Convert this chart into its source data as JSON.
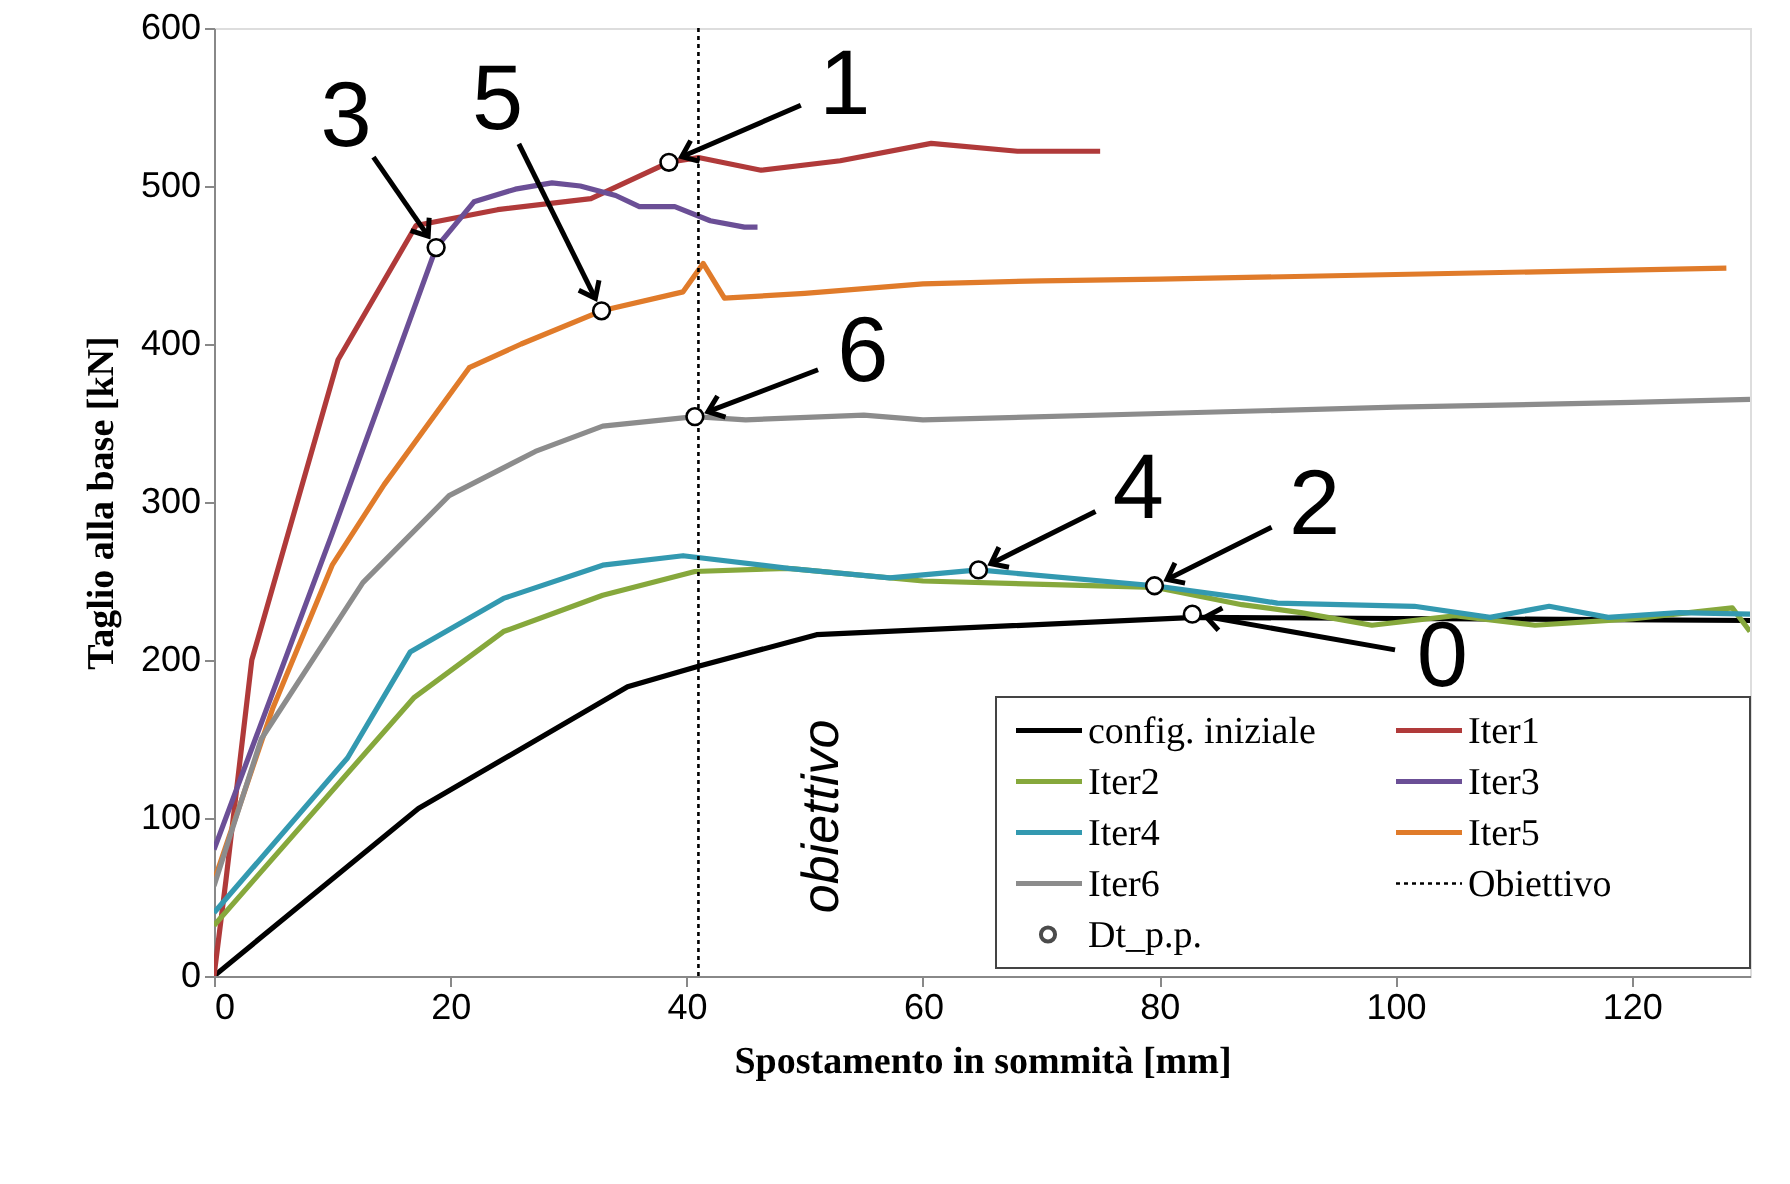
{
  "chart_data": {
    "type": "line",
    "xlabel": "Spostamento in sommità [mm]",
    "ylabel": "Taglio alla base [kN]",
    "xlim": [
      0,
      130
    ],
    "xticks": [
      0,
      20,
      40,
      60,
      80,
      100,
      120
    ],
    "ylim": [
      0,
      600
    ],
    "yticks": [
      0,
      100,
      200,
      300,
      400,
      500,
      600
    ],
    "grid": false,
    "legend": "bottom right",
    "series": [
      {
        "name": "config. iniziale",
        "color": "#000000",
        "x": [
          0,
          17.3,
          35,
          41,
          51,
          83,
          130
        ],
        "values": [
          0,
          106,
          183,
          196,
          216,
          227,
          225
        ]
      },
      {
        "name": "Iter1",
        "color": "#b03a3a",
        "x": [
          0,
          1,
          3.2,
          10.5,
          17.1,
          24,
          31.9,
          38.5,
          41,
          46.3,
          53,
          60.7,
          68,
          75
        ],
        "values": [
          0,
          60,
          200,
          390,
          475,
          485,
          492,
          515,
          518,
          510,
          516,
          527,
          522,
          522
        ]
      },
      {
        "name": "Iter2",
        "color": "#86a83c",
        "x": [
          0,
          16.9,
          24.5,
          32.9,
          40.7,
          48.6,
          60,
          79.6,
          87,
          92,
          98,
          105,
          111.8,
          120,
          128.5,
          130
        ],
        "values": [
          32,
          176,
          218,
          241,
          256,
          258,
          250,
          246,
          235,
          230,
          222,
          228,
          222,
          226,
          233,
          218
        ]
      },
      {
        "name": "Iter3",
        "color": "#6b4f96",
        "x": [
          0,
          10,
          18.8,
          22,
          25.5,
          28.6,
          31,
          34,
          36,
          39,
          42,
          44.9,
          46
        ],
        "values": [
          80,
          280,
          461,
          490,
          498,
          502,
          500,
          494,
          487,
          487,
          478,
          474,
          474
        ]
      },
      {
        "name": "Iter4",
        "color": "#3399b0",
        "x": [
          0,
          11.3,
          16.6,
          24.5,
          32.9,
          39.7,
          48.6,
          57.2,
          64.7,
          79.6,
          87.4,
          90,
          101.6,
          108,
          113,
          118,
          124,
          130
        ],
        "values": [
          40,
          138,
          205,
          239,
          260,
          266,
          258,
          252,
          257,
          247,
          239,
          236,
          234,
          227,
          234,
          227,
          230,
          229
        ]
      },
      {
        "name": "Iter5",
        "color": "#e07b2a",
        "x": [
          0,
          5,
          10,
          14.4,
          21.6,
          26,
          32.8,
          39.7,
          41.4,
          43.2,
          50,
          60,
          70,
          80,
          100,
          128
        ],
        "values": [
          60,
          170,
          260,
          311,
          385,
          400,
          421,
          433,
          451,
          429,
          432,
          438,
          440,
          441,
          444,
          448
        ]
      },
      {
        "name": "Iter6",
        "color": "#8c8c8c",
        "x": [
          0,
          4,
          12.6,
          19.9,
          27.2,
          32.9,
          40.7,
          45,
          55,
          60,
          80,
          100,
          120,
          130
        ],
        "values": [
          57,
          150,
          249,
          304,
          332,
          348,
          354,
          352,
          355,
          352,
          356,
          360,
          363,
          365
        ]
      },
      {
        "name": "Obiettivo",
        "color": "#000000",
        "line_style": "dotted",
        "x": [
          41,
          41
        ],
        "values": [
          0,
          600
        ]
      },
      {
        "name": "Dt_p.p.",
        "type": "scatter",
        "marker": "circle",
        "color": "#000000",
        "x": [
          82.8,
          38.5,
          79.6,
          18.8,
          64.7,
          32.8,
          40.7
        ],
        "values": [
          229,
          515,
          247,
          461,
          257,
          421,
          354
        ]
      }
    ],
    "annotations": [
      {
        "text": "0",
        "x": 82.8,
        "y": 229
      },
      {
        "text": "1",
        "x": 38.5,
        "y": 515
      },
      {
        "text": "2",
        "x": 79.6,
        "y": 247
      },
      {
        "text": "3",
        "x": 18.8,
        "y": 461
      },
      {
        "text": "4",
        "x": 64.7,
        "y": 257
      },
      {
        "text": "5",
        "x": 32.8,
        "y": 421
      },
      {
        "text": "6",
        "x": 40.7,
        "y": 354
      },
      {
        "text": "obiettivo",
        "x": 41,
        "y": 101
      }
    ]
  }
}
